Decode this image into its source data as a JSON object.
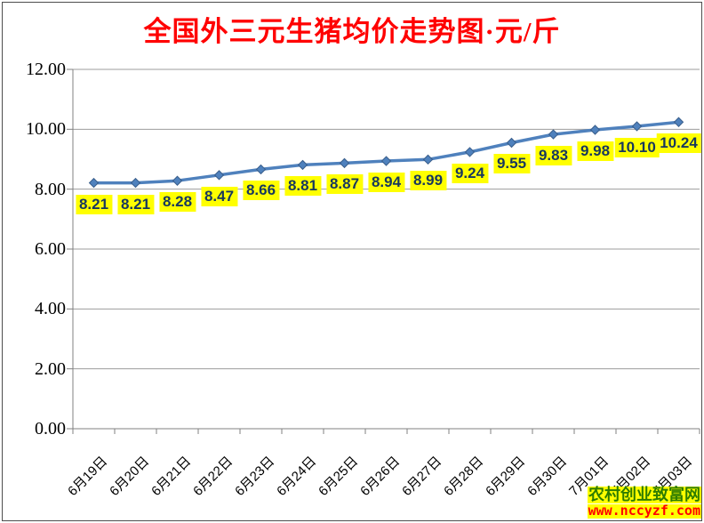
{
  "chart_data": {
    "type": "line",
    "title": "全国外三元生猪均价走势图·元/斤",
    "title_color": "#ff0000",
    "categories": [
      "6月19日",
      "6月20日",
      "6月21日",
      "6月22日",
      "6月23日",
      "6月24日",
      "6月25日",
      "6月26日",
      "6月27日",
      "6月28日",
      "6月29日",
      "6月30日",
      "7月01日",
      "7月02日",
      "7月03日"
    ],
    "values": [
      8.21,
      8.21,
      8.28,
      8.47,
      8.66,
      8.81,
      8.87,
      8.94,
      8.99,
      9.24,
      9.55,
      9.83,
      9.98,
      10.1,
      10.24
    ],
    "data_labels": [
      "8.21",
      "8.21",
      "8.28",
      "8.47",
      "8.66",
      "8.81",
      "8.87",
      "8.94",
      "8.99",
      "9.24",
      "9.55",
      "9.83",
      "9.98",
      "10.10",
      "10.24"
    ],
    "ylim": [
      0,
      12
    ],
    "ytick_step": 2,
    "ytick_labels": [
      "0.00",
      "2.00",
      "4.00",
      "6.00",
      "8.00",
      "10.00",
      "12.00"
    ],
    "grid": true,
    "legend": "none",
    "line_color": "#4f81bd",
    "marker": "diamond",
    "marker_edge_color": "#385d8a",
    "grid_color": "#9d9d9d",
    "axis_color": "#808080",
    "data_label_bg": "#ffff00",
    "data_label_color": "#17375e"
  },
  "watermark": {
    "site_name": "农村创业致富网",
    "url": "www.nccyzf.com",
    "bg_color": "#ffff00",
    "site_name_color": "#2e7d00",
    "url_color": "#ff0000"
  }
}
